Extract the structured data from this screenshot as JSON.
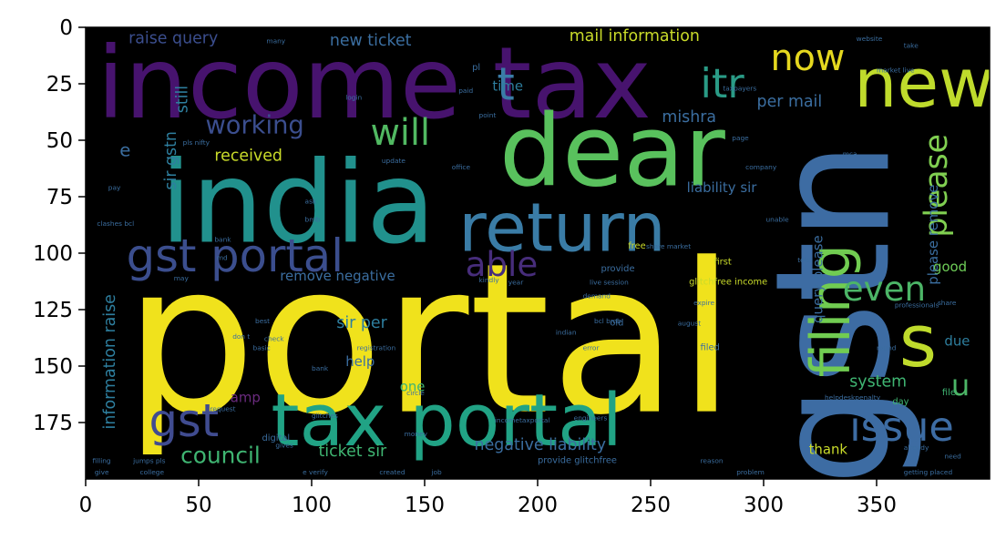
{
  "chart_data": {
    "type": "wordcloud",
    "image_width": 400,
    "image_height": 200,
    "xlim": [
      0,
      400
    ],
    "ylim": [
      200,
      0
    ],
    "x_ticks": [
      0,
      50,
      100,
      150,
      200,
      250,
      300,
      350
    ],
    "y_ticks": [
      0,
      25,
      50,
      75,
      100,
      125,
      150,
      175
    ],
    "grid": false,
    "background": "#000000",
    "words": [
      {
        "text": "portal",
        "x": 17,
        "y": 170,
        "size": 92,
        "color": "#f0e21c",
        "rotate": 0
      },
      {
        "text": "income tax",
        "x": 5,
        "y": 40,
        "size": 44,
        "color": "#47136e",
        "rotate": 0
      },
      {
        "text": "india",
        "x": 33,
        "y": 95,
        "size": 50,
        "color": "#21918d",
        "rotate": 0
      },
      {
        "text": "gstn",
        "x": 355,
        "y": 203,
        "size": 70,
        "color": "#3d6ca3",
        "rotate": -90
      },
      {
        "text": "dear",
        "x": 183,
        "y": 70,
        "size": 44,
        "color": "#59c15d",
        "rotate": 0
      },
      {
        "text": "new",
        "x": 340,
        "y": 35,
        "size": 30,
        "color": "#bfdb2c",
        "rotate": 0
      },
      {
        "text": "return",
        "x": 165,
        "y": 99,
        "size": 30,
        "color": "#3a7ca6",
        "rotate": 0
      },
      {
        "text": "gst portal",
        "x": 18,
        "y": 108,
        "size": 20,
        "color": "#3b4e8e",
        "rotate": 0
      },
      {
        "text": "tax portal",
        "x": 82,
        "y": 185,
        "size": 32,
        "color": "#21a385",
        "rotate": 0
      },
      {
        "text": "filing",
        "x": 338,
        "y": 155,
        "size": 24,
        "color": "#71cc51",
        "rotate": -90
      },
      {
        "text": "s",
        "x": 360,
        "y": 150,
        "size": 32,
        "color": "#bfdb2c",
        "rotate": 0
      },
      {
        "text": "issue",
        "x": 338,
        "y": 183,
        "size": 18,
        "color": "#3d6ca3",
        "rotate": 0
      },
      {
        "text": "gst",
        "x": 28,
        "y": 181,
        "size": 20,
        "color": "#404c90",
        "rotate": 0
      },
      {
        "text": "t",
        "x": 182,
        "y": 32,
        "size": 20,
        "color": "#3a7ca6",
        "rotate": 0
      },
      {
        "text": "now",
        "x": 303,
        "y": 19,
        "size": 16,
        "color": "#e5d81f",
        "rotate": 0
      },
      {
        "text": "itr",
        "x": 272,
        "y": 31,
        "size": 18,
        "color": "#2a9b86",
        "rotate": 0
      },
      {
        "text": "will",
        "x": 126,
        "y": 52,
        "size": 16,
        "color": "#51b962",
        "rotate": 0
      },
      {
        "text": "please",
        "x": 381,
        "y": 93,
        "size": 14,
        "color": "#80cf51",
        "rotate": -90
      },
      {
        "text": "even",
        "x": 335,
        "y": 121,
        "size": 15,
        "color": "#4cb567",
        "rotate": 0
      },
      {
        "text": "able",
        "x": 168,
        "y": 110,
        "size": 15,
        "color": "#472d7b",
        "rotate": 0
      },
      {
        "text": "working",
        "x": 53,
        "y": 47,
        "size": 11,
        "color": "#3b4e8e",
        "rotate": 0
      },
      {
        "text": "council",
        "x": 42,
        "y": 193,
        "size": 10,
        "color": "#3fb572",
        "rotate": 0
      },
      {
        "text": "u",
        "x": 383,
        "y": 163,
        "size": 13,
        "color": "#4cb567",
        "rotate": 0
      },
      {
        "text": "raise query",
        "x": 19,
        "y": 7,
        "size": 7,
        "color": "#3b4e8e",
        "rotate": 0
      },
      {
        "text": "new ticket",
        "x": 108,
        "y": 8,
        "size": 7,
        "color": "#3b6ea0",
        "rotate": 0
      },
      {
        "text": "mail information",
        "x": 214,
        "y": 6,
        "size": 7,
        "color": "#c9db2a",
        "rotate": 0
      },
      {
        "text": "per mail",
        "x": 297,
        "y": 35,
        "size": 7,
        "color": "#3b6ea0",
        "rotate": 0
      },
      {
        "text": "mishra",
        "x": 255,
        "y": 42,
        "size": 7,
        "color": "#3b6ea0",
        "rotate": 0
      },
      {
        "text": "received",
        "x": 57,
        "y": 59,
        "size": 7,
        "color": "#c9db2a",
        "rotate": 0
      },
      {
        "text": "liability sir",
        "x": 266,
        "y": 73,
        "size": 6,
        "color": "#3b6ea0",
        "rotate": 0
      },
      {
        "text": "remove negative",
        "x": 86,
        "y": 112,
        "size": 6,
        "color": "#3b6ea0",
        "rotate": 0
      },
      {
        "text": "negative liability",
        "x": 172,
        "y": 187,
        "size": 7,
        "color": "#3b6ea0",
        "rotate": 0
      },
      {
        "text": "ticket sir",
        "x": 103,
        "y": 190,
        "size": 7,
        "color": "#3fb572",
        "rotate": 0
      },
      {
        "text": "sir per",
        "x": 111,
        "y": 133,
        "size": 7,
        "color": "#2e7f9f",
        "rotate": 0
      },
      {
        "text": "system",
        "x": 338,
        "y": 159,
        "size": 7,
        "color": "#3fb572",
        "rotate": 0
      },
      {
        "text": "thank",
        "x": 320,
        "y": 189,
        "size": 6,
        "color": "#c9db2a",
        "rotate": 0
      },
      {
        "text": "due",
        "x": 380,
        "y": 141,
        "size": 6,
        "color": "#2e7f9f",
        "rotate": 0
      },
      {
        "text": "good",
        "x": 375,
        "y": 108,
        "size": 6,
        "color": "#6fce58",
        "rotate": 0
      },
      {
        "text": "help",
        "x": 115,
        "y": 150,
        "size": 6,
        "color": "#3b6ea0",
        "rotate": 0
      },
      {
        "text": "amp",
        "x": 64,
        "y": 166,
        "size": 6,
        "color": "#6b2b7f",
        "rotate": 0
      },
      {
        "text": "one",
        "x": 139,
        "y": 161,
        "size": 6,
        "color": "#3fb572",
        "rotate": 0
      },
      {
        "text": "time",
        "x": 180,
        "y": 28,
        "size": 6,
        "color": "#2e7f9f",
        "rotate": 0
      },
      {
        "text": "still",
        "x": 45,
        "y": 38,
        "size": 7,
        "color": "#2e7f9f",
        "rotate": -90
      },
      {
        "text": "sir gstn",
        "x": 40,
        "y": 72,
        "size": 7,
        "color": "#2e7f9f",
        "rotate": -90
      },
      {
        "text": "information raise",
        "x": 13,
        "y": 178,
        "size": 7,
        "color": "#2e7f9f",
        "rotate": -90
      },
      {
        "text": "query please",
        "x": 326,
        "y": 131,
        "size": 6,
        "color": "#3b6ea0",
        "rotate": -90
      },
      {
        "text": "please remove",
        "x": 377,
        "y": 114,
        "size": 6,
        "color": "#3b6ea0",
        "rotate": -90
      },
      {
        "text": "glitchfree income",
        "x": 267,
        "y": 114,
        "size": 4,
        "color": "#c9db2a",
        "rotate": 0
      },
      {
        "text": "provide glitchfree",
        "x": 200,
        "y": 193,
        "size": 4,
        "color": "#3b6ea0",
        "rotate": 0
      },
      {
        "text": "provide",
        "x": 228,
        "y": 108,
        "size": 4,
        "color": "#3b6ea0",
        "rotate": 0
      },
      {
        "text": "first",
        "x": 278,
        "y": 105,
        "size": 4,
        "color": "#c9db2a",
        "rotate": 0
      },
      {
        "text": "free",
        "x": 240,
        "y": 98,
        "size": 4,
        "color": "#c9db2a",
        "rotate": 0
      },
      {
        "text": "share market",
        "x": 248,
        "y": 98,
        "size": 3,
        "color": "#3b6ea0",
        "rotate": 0
      },
      {
        "text": "filed",
        "x": 272,
        "y": 143,
        "size": 4,
        "color": "#3b6ea0",
        "rotate": 0
      },
      {
        "text": "old",
        "x": 232,
        "y": 132,
        "size": 4,
        "color": "#3b6ea0",
        "rotate": 0
      },
      {
        "text": "day",
        "x": 357,
        "y": 167,
        "size": 4,
        "color": "#3fb572",
        "rotate": 0
      },
      {
        "text": "file",
        "x": 379,
        "y": 163,
        "size": 4,
        "color": "#3fb572",
        "rotate": 0
      },
      {
        "text": "digital",
        "x": 78,
        "y": 183,
        "size": 4,
        "color": "#3b6ea0",
        "rotate": 0
      },
      {
        "text": "market live",
        "x": 350,
        "y": 20,
        "size": 3,
        "color": "#3b6ea0",
        "rotate": 0
      },
      {
        "text": "taxpayers",
        "x": 282,
        "y": 28,
        "size": 3,
        "color": "#3b6ea0",
        "rotate": 0
      },
      {
        "text": "company",
        "x": 292,
        "y": 63,
        "size": 3,
        "color": "#3b6ea0",
        "rotate": 0
      },
      {
        "text": "registration",
        "x": 120,
        "y": 143,
        "size": 3,
        "color": "#3b6ea0",
        "rotate": 0
      },
      {
        "text": "professionals",
        "x": 358,
        "y": 124,
        "size": 3,
        "color": "#3b6ea0",
        "rotate": 0
      },
      {
        "text": "helpdeskpenalty",
        "x": 327,
        "y": 165,
        "size": 3,
        "color": "#3b6ea0",
        "rotate": 0
      },
      {
        "text": "clashes bcl",
        "x": 5,
        "y": 88,
        "size": 3,
        "color": "#3b6ea0",
        "rotate": 0
      },
      {
        "text": "live session",
        "x": 223,
        "y": 114,
        "size": 3,
        "color": "#3b6ea0",
        "rotate": 0
      },
      {
        "text": "demand",
        "x": 220,
        "y": 120,
        "size": 3,
        "color": "#3b6ea0",
        "rotate": 0
      },
      {
        "text": "bcl bmb",
        "x": 225,
        "y": 131,
        "size": 3,
        "color": "#3b6ea0",
        "rotate": 0
      },
      {
        "text": "indian",
        "x": 208,
        "y": 136,
        "size": 3,
        "color": "#3b6ea0",
        "rotate": 0
      },
      {
        "text": "august",
        "x": 262,
        "y": 132,
        "size": 3,
        "color": "#3b6ea0",
        "rotate": 0
      },
      {
        "text": "basic",
        "x": 74,
        "y": 143,
        "size": 3,
        "color": "#3b6ea0",
        "rotate": 0
      },
      {
        "text": "bank",
        "x": 100,
        "y": 152,
        "size": 3,
        "color": "#3b6ea0",
        "rotate": 0
      },
      {
        "text": "request",
        "x": 55,
        "y": 170,
        "size": 3,
        "color": "#3b6ea0",
        "rotate": 0
      },
      {
        "text": "glitches",
        "x": 100,
        "y": 173,
        "size": 3,
        "color": "#3b6ea0",
        "rotate": 0
      },
      {
        "text": "incometaxportal",
        "x": 181,
        "y": 175,
        "size": 3,
        "color": "#3b6ea0",
        "rotate": 0
      },
      {
        "text": "engineers",
        "x": 216,
        "y": 174,
        "size": 3,
        "color": "#3b6ea0",
        "rotate": 0
      },
      {
        "text": "filling",
        "x": 3,
        "y": 193,
        "size": 3,
        "color": "#3b6ea0",
        "rotate": 0
      },
      {
        "text": "jumps pls",
        "x": 21,
        "y": 193,
        "size": 3,
        "color": "#3b6ea0",
        "rotate": 0
      },
      {
        "text": "college",
        "x": 24,
        "y": 198,
        "size": 3,
        "color": "#3b6ea0",
        "rotate": 0
      },
      {
        "text": "e verify",
        "x": 96,
        "y": 198,
        "size": 3,
        "color": "#3b6ea0",
        "rotate": 0
      },
      {
        "text": "created",
        "x": 130,
        "y": 198,
        "size": 3,
        "color": "#3b6ea0",
        "rotate": 0
      },
      {
        "text": "problem",
        "x": 288,
        "y": 198,
        "size": 3,
        "color": "#3b6ea0",
        "rotate": 0
      },
      {
        "text": "reason",
        "x": 272,
        "y": 193,
        "size": 3,
        "color": "#3b6ea0",
        "rotate": 0
      },
      {
        "text": "getting placed",
        "x": 362,
        "y": 198,
        "size": 3,
        "color": "#3b6ea0",
        "rotate": 0
      },
      {
        "text": "already",
        "x": 362,
        "y": 187,
        "size": 3,
        "color": "#3b6ea0",
        "rotate": 0
      },
      {
        "text": "money",
        "x": 141,
        "y": 181,
        "size": 3,
        "color": "#3b6ea0",
        "rotate": 0
      },
      {
        "text": "ask",
        "x": 97,
        "y": 78,
        "size": 3,
        "color": "#3b6ea0",
        "rotate": 0
      },
      {
        "text": "bmb",
        "x": 97,
        "y": 86,
        "size": 3,
        "color": "#3b6ea0",
        "rotate": 0
      },
      {
        "text": "bank",
        "x": 57,
        "y": 95,
        "size": 3,
        "color": "#3b6ea0",
        "rotate": 0
      },
      {
        "text": "pay",
        "x": 10,
        "y": 72,
        "size": 3,
        "color": "#3b6ea0",
        "rotate": 0
      },
      {
        "text": "pls nifty",
        "x": 43,
        "y": 52,
        "size": 3,
        "color": "#3b6ea0",
        "rotate": 0
      },
      {
        "text": "update",
        "x": 131,
        "y": 60,
        "size": 3,
        "color": "#3b6ea0",
        "rotate": 0
      },
      {
        "text": "office",
        "x": 162,
        "y": 63,
        "size": 3,
        "color": "#3b6ea0",
        "rotate": 0
      },
      {
        "text": "login",
        "x": 115,
        "y": 32,
        "size": 3,
        "color": "#3b6ea0",
        "rotate": 0
      },
      {
        "text": "point",
        "x": 174,
        "y": 40,
        "size": 3,
        "color": "#3b6ea0",
        "rotate": 0
      },
      {
        "text": "paid",
        "x": 165,
        "y": 29,
        "size": 3,
        "color": "#3b6ea0",
        "rotate": 0
      },
      {
        "text": "pl",
        "x": 171,
        "y": 19,
        "size": 4,
        "color": "#3b6ea0",
        "rotate": 0
      },
      {
        "text": "many",
        "x": 80,
        "y": 7,
        "size": 3,
        "color": "#3b6ea0",
        "rotate": 0
      },
      {
        "text": "website",
        "x": 341,
        "y": 6,
        "size": 3,
        "color": "#3b6ea0",
        "rotate": 0
      },
      {
        "text": "take",
        "x": 362,
        "y": 9,
        "size": 3,
        "color": "#3b6ea0",
        "rotate": 0
      },
      {
        "text": "page",
        "x": 286,
        "y": 50,
        "size": 3,
        "color": "#3b6ea0",
        "rotate": 0
      },
      {
        "text": "mca",
        "x": 335,
        "y": 57,
        "size": 3,
        "color": "#3b6ea0",
        "rotate": 0
      },
      {
        "text": "unable",
        "x": 301,
        "y": 86,
        "size": 3,
        "color": "#3b6ea0",
        "rotate": 0
      },
      {
        "text": "best",
        "x": 75,
        "y": 131,
        "size": 3,
        "color": "#3b6ea0",
        "rotate": 0
      },
      {
        "text": "check",
        "x": 79,
        "y": 139,
        "size": 3,
        "color": "#3b6ea0",
        "rotate": 0
      },
      {
        "text": "don t",
        "x": 65,
        "y": 138,
        "size": 3,
        "color": "#3b6ea0",
        "rotate": 0
      },
      {
        "text": "error",
        "x": 220,
        "y": 143,
        "size": 3,
        "color": "#3b6ea0",
        "rotate": 0
      },
      {
        "text": "round",
        "x": 350,
        "y": 143,
        "size": 3,
        "color": "#3b6ea0",
        "rotate": 0
      },
      {
        "text": "share",
        "x": 377,
        "y": 123,
        "size": 3,
        "color": "#3b6ea0",
        "rotate": 0
      },
      {
        "text": "expire",
        "x": 269,
        "y": 123,
        "size": 3,
        "color": "#3b6ea0",
        "rotate": 0
      },
      {
        "text": "kindly",
        "x": 174,
        "y": 113,
        "size": 3,
        "color": "#3b6ea0",
        "rotate": 0
      },
      {
        "text": "year",
        "x": 187,
        "y": 114,
        "size": 3,
        "color": "#3b6ea0",
        "rotate": 0
      },
      {
        "text": "md",
        "x": 58,
        "y": 103,
        "size": 3,
        "color": "#3b6ea0",
        "rotate": 0
      },
      {
        "text": "may",
        "x": 39,
        "y": 112,
        "size": 3,
        "color": "#3b6ea0",
        "rotate": 0
      },
      {
        "text": "total",
        "x": 315,
        "y": 104,
        "size": 3,
        "color": "#3b6ea0",
        "rotate": 0
      },
      {
        "text": "circle",
        "x": 142,
        "y": 163,
        "size": 3,
        "color": "#3b6ea0",
        "rotate": 0
      },
      {
        "text": "gives",
        "x": 84,
        "y": 186,
        "size": 3,
        "color": "#3b6ea0",
        "rotate": 0
      },
      {
        "text": "give",
        "x": 4,
        "y": 198,
        "size": 3,
        "color": "#3b6ea0",
        "rotate": 0
      },
      {
        "text": "job",
        "x": 153,
        "y": 198,
        "size": 3,
        "color": "#3b6ea0",
        "rotate": 0
      },
      {
        "text": "need",
        "x": 380,
        "y": 191,
        "size": 3,
        "color": "#3b6ea0",
        "rotate": 0
      },
      {
        "text": "e",
        "x": 15,
        "y": 57,
        "size": 8,
        "color": "#3b6ea0",
        "rotate": 0
      }
    ]
  }
}
